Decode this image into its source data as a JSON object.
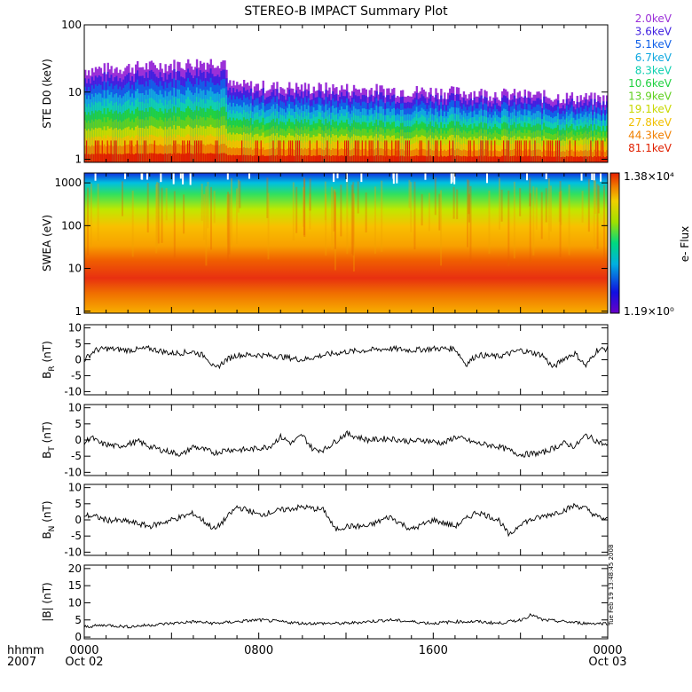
{
  "title": "STEREO-B IMPACT Summary Plot",
  "stamp": "Tue Feb 19 13:48:45 2008",
  "time_axis": {
    "row1_label": "hhmm",
    "row2_label": "2007",
    "ticks": [
      {
        "hour": 0,
        "label": "0000",
        "date": "Oct 02"
      },
      {
        "hour": 8,
        "label": "0800",
        "date": ""
      },
      {
        "hour": 16,
        "label": "1600",
        "date": ""
      },
      {
        "hour": 24,
        "label": "0000",
        "date": "Oct 03"
      }
    ]
  },
  "colorbar": {
    "max_label": "1.38×10⁴",
    "min_label": "1.19×10⁰",
    "title": "e- Flux"
  },
  "ste_legend": [
    {
      "label": "2.0keV",
      "color": "#9b30d8"
    },
    {
      "label": "3.6keV",
      "color": "#4020e0"
    },
    {
      "label": "5.1keV",
      "color": "#1060e8"
    },
    {
      "label": "6.7keV",
      "color": "#10a8e0"
    },
    {
      "label": "8.3keV",
      "color": "#10d0b0"
    },
    {
      "label": "10.6keV",
      "color": "#20d040"
    },
    {
      "label": "13.9keV",
      "color": "#60d020"
    },
    {
      "label": "19.1keV",
      "color": "#c8d800"
    },
    {
      "label": "27.8keV",
      "color": "#f0c000"
    },
    {
      "label": "44.3keV",
      "color": "#f08000"
    },
    {
      "label": "81.1keV",
      "color": "#e02000"
    }
  ],
  "chart_data": [
    {
      "type": "area",
      "panel": "ste",
      "ylabel": "STE D0 (keV)",
      "yscale": "log",
      "ylim": [
        0.9,
        100
      ],
      "yticks": [
        {
          "v": 1,
          "label": "1"
        },
        {
          "v": 10,
          "label": "10"
        },
        {
          "v": 100,
          "label": "100"
        }
      ],
      "x_range_hours": [
        0,
        24
      ],
      "series_hours": [
        0,
        2,
        4,
        6.5,
        6.6,
        10,
        14,
        18,
        21,
        24
      ],
      "series_max_keV": [
        22,
        24,
        26,
        30,
        13,
        12,
        11,
        10,
        9,
        8
      ]
    },
    {
      "type": "heatmap",
      "panel": "swea",
      "ylabel": "SWEA (eV)",
      "yscale": "log",
      "ylim": [
        0.9,
        1700
      ],
      "yticks": [
        {
          "v": 1,
          "label": "1"
        },
        {
          "v": 10,
          "label": "10"
        },
        {
          "v": 100,
          "label": "100"
        },
        {
          "v": 1000,
          "label": "1000"
        }
      ],
      "x_range_hours": [
        0,
        24
      ],
      "zlim": [
        1.19,
        13800
      ]
    },
    {
      "type": "line",
      "panel": "br",
      "ylabel": "B_R (nT)",
      "ylim": [
        -11,
        11
      ],
      "yticks": [
        {
          "v": -10,
          "label": "-10"
        },
        {
          "v": -5,
          "label": "-5"
        },
        {
          "v": 0,
          "label": "0"
        },
        {
          "v": 5,
          "label": "5"
        },
        {
          "v": 10,
          "label": "10"
        }
      ],
      "x": [
        0,
        0.5,
        1,
        2,
        3,
        4,
        5,
        5.6,
        6,
        6.5,
        7,
        8,
        9,
        10,
        11,
        12,
        13,
        14,
        15,
        16,
        17,
        17.5,
        18,
        19,
        20,
        21,
        21.5,
        22,
        22.5,
        23,
        23.5,
        24
      ],
      "y": [
        0,
        3,
        3.5,
        3,
        3.5,
        2,
        2.5,
        1,
        -3,
        0,
        1.5,
        1.5,
        1,
        0,
        1.5,
        2.5,
        3,
        3.5,
        3,
        3.5,
        3.5,
        -1.5,
        1.5,
        1,
        3,
        1.5,
        -2.5,
        0.5,
        2,
        -2,
        3,
        3.5
      ]
    },
    {
      "type": "line",
      "panel": "bt",
      "ylabel": "B_T (nT)",
      "ylim": [
        -11,
        11
      ],
      "yticks": [
        {
          "v": -10,
          "label": "-10"
        },
        {
          "v": -5,
          "label": "-5"
        },
        {
          "v": 0,
          "label": "0"
        },
        {
          "v": 5,
          "label": "5"
        },
        {
          "v": 10,
          "label": "10"
        }
      ],
      "x": [
        0,
        0.3,
        0.7,
        1.5,
        2.5,
        3,
        3.5,
        4.5,
        5,
        6,
        6.5,
        7.5,
        8.5,
        9,
        9.5,
        10,
        10.5,
        11,
        12,
        13,
        14,
        15,
        15.5,
        16.5,
        17,
        18,
        19,
        20,
        21,
        22,
        22.5,
        23,
        24
      ],
      "y": [
        -1,
        1,
        -1,
        -2,
        -0.5,
        -2,
        -3,
        -4.5,
        -2,
        -4,
        -3,
        -3,
        -2,
        1,
        -1,
        1.5,
        -3,
        -3,
        2,
        0,
        0.5,
        -0.5,
        0,
        -1,
        1,
        -1,
        -2,
        -4.5,
        -4,
        -1,
        -2,
        1.5,
        -2
      ]
    },
    {
      "type": "line",
      "panel": "bn",
      "ylabel": "B_N (nT)",
      "ylim": [
        -11,
        11
      ],
      "yticks": [
        {
          "v": -10,
          "label": "-10"
        },
        {
          "v": -5,
          "label": "-5"
        },
        {
          "v": 0,
          "label": "0"
        },
        {
          "v": 5,
          "label": "5"
        },
        {
          "v": 10,
          "label": "10"
        }
      ],
      "x": [
        0,
        0.5,
        1,
        2,
        3,
        4,
        5,
        6,
        7,
        7.5,
        8,
        9,
        10,
        11,
        11.5,
        12,
        13,
        14,
        15,
        16,
        17,
        18,
        19,
        19.5,
        20,
        21,
        22,
        22.5,
        23,
        23.5,
        24
      ],
      "y": [
        1.5,
        1,
        0,
        -0.5,
        -2,
        0,
        2,
        -3,
        4,
        3,
        1.5,
        3,
        4,
        3,
        -3,
        -2,
        -2,
        1,
        -3,
        0,
        -2,
        2.5,
        0,
        -5,
        -1,
        1,
        3,
        4.5,
        3.5,
        1,
        0
      ]
    },
    {
      "type": "line",
      "panel": "bmag",
      "ylabel": "|B| (nT)",
      "ylim": [
        -0.5,
        21
      ],
      "yticks": [
        {
          "v": 0,
          "label": "0"
        },
        {
          "v": 5,
          "label": "5"
        },
        {
          "v": 10,
          "label": "10"
        },
        {
          "v": 15,
          "label": "15"
        },
        {
          "v": 20,
          "label": "20"
        }
      ],
      "x": [
        0,
        1,
        2,
        3,
        4,
        5,
        6,
        7,
        8,
        9,
        10,
        11,
        12,
        13,
        14,
        15,
        16,
        17,
        18,
        19,
        20,
        20.5,
        21,
        22,
        23,
        24
      ],
      "y": [
        3,
        3.5,
        3,
        3.5,
        4,
        4.5,
        4,
        4.5,
        5,
        4.5,
        4,
        4,
        4,
        4.5,
        5,
        4.5,
        4,
        4.5,
        4.5,
        4,
        5,
        6.5,
        5,
        4.5,
        4,
        4
      ]
    }
  ]
}
